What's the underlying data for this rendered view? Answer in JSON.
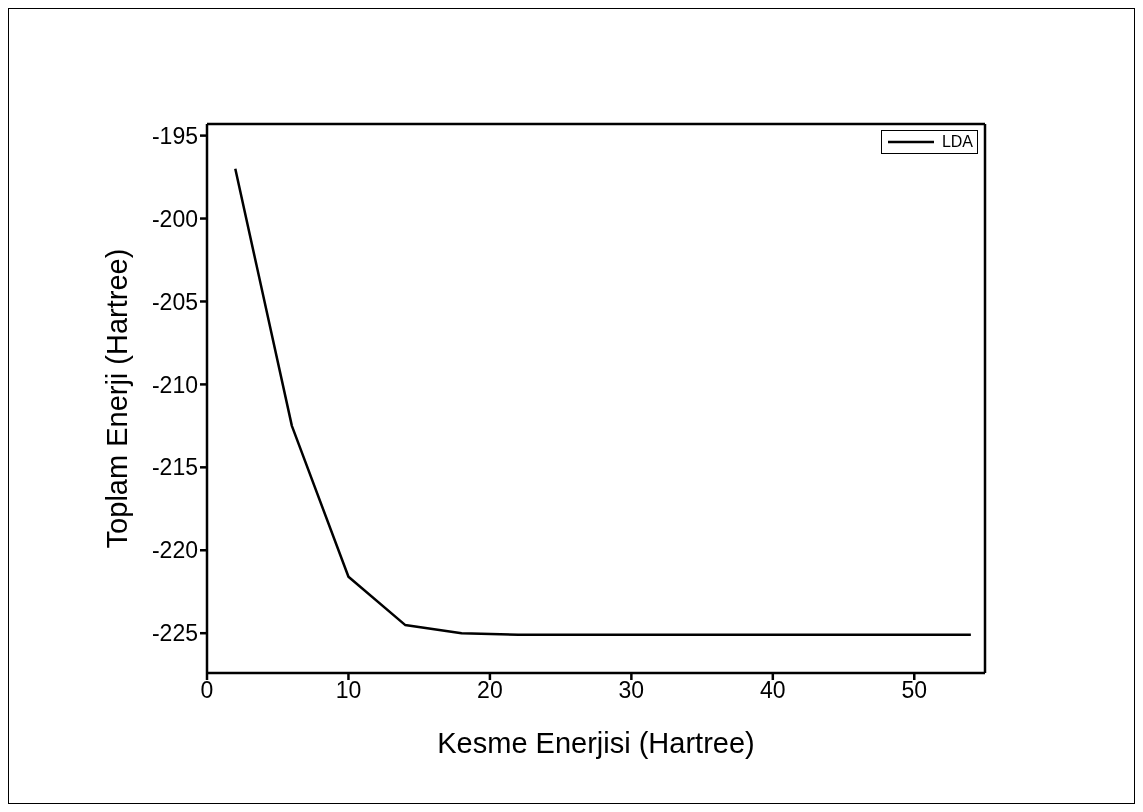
{
  "chart_data": {
    "type": "line",
    "xlabel": "Kesme Enerjisi (Hartree)",
    "ylabel": "Toplam Enerji (Hartree)",
    "x": [
      2,
      6,
      10,
      14,
      18,
      22,
      26,
      30,
      34,
      38,
      42,
      46,
      50,
      54
    ],
    "series": [
      {
        "name": "LDA",
        "color": "#000000",
        "values": [
          -197,
          -212.5,
          -221.6,
          -224.5,
          -225,
          -225.1,
          -225.1,
          -225.1,
          -225.1,
          -225.1,
          -225.1,
          -225.1,
          -225.1,
          -225.1
        ]
      }
    ],
    "xlim": [
      0,
      55
    ],
    "xticks": [
      0,
      10,
      20,
      30,
      40,
      50
    ],
    "ylim": [
      -227.4,
      -194.3
    ],
    "yticks": [
      -225,
      -220,
      -215,
      -210,
      -205,
      -200,
      -195
    ],
    "legend": "top right",
    "grid": false,
    "marker": "none",
    "line_style": "solid"
  }
}
